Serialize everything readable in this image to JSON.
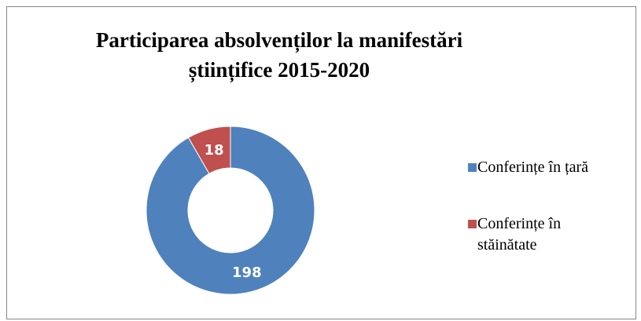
{
  "chart_data": {
    "type": "donut",
    "title": "Participarea absolvenților la manifestări științifice 2015-2020",
    "categories": [
      "Conferințe în țară",
      "Conferințe în stăinătate"
    ],
    "values": [
      198,
      18
    ],
    "colors": [
      "#4f81bd",
      "#c0504d"
    ],
    "legend": "right"
  }
}
